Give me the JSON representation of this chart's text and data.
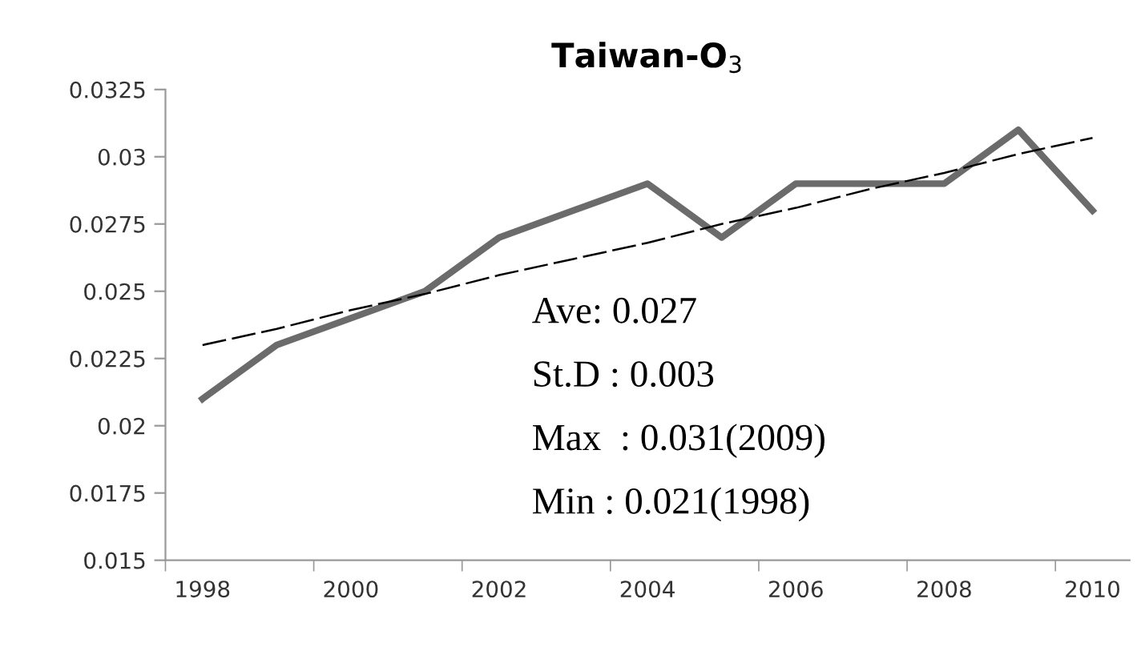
{
  "chart_data": {
    "type": "line",
    "title": "Taiwan-O$_{3}$",
    "categories": [
      "1998",
      null,
      "2000",
      null,
      "2002",
      null,
      "2004",
      null,
      "2006",
      null,
      "2008",
      null,
      "2010"
    ],
    "series": [
      {
        "color": "#6b6b6b",
        "values": [
          0.021,
          0.023,
          0.024,
          0.025,
          0.027,
          0.028,
          0.029,
          0.027,
          0.029,
          0.029,
          0.029,
          0.031,
          0.028
        ],
        "line_style": "solid"
      },
      {
        "type": "line",
        "color": "#000000",
        "values": [
          0.023,
          0.0236,
          0.0243,
          0.0249,
          0.0256,
          0.0262,
          0.0268,
          0.0275,
          0.0281,
          0.0288,
          0.0294,
          0.0301,
          0.0307
        ],
        "line_style": "dashed"
      }
    ],
    "ylim": [
      0.015,
      0.0325
    ],
    "yticks": [
      0.015,
      0.0175,
      0.02,
      0.0225,
      0.025,
      0.0275,
      0.03,
      0.0325
    ],
    "grid": false,
    "legend": false,
    "marker": "none",
    "annotations": [
      "Ave: 0.027",
      "St.D : 0.003",
      "Max  : 0.031(2009)",
      "Min : 0.021(1998)"
    ]
  }
}
